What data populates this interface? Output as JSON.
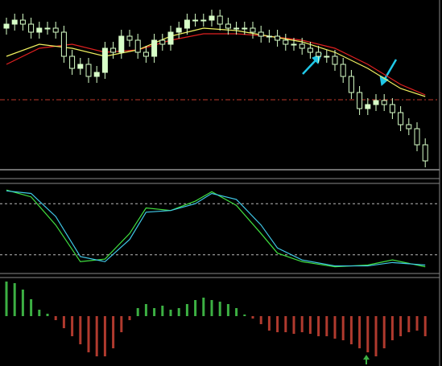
{
  "chart_data": [
    {
      "type": "candlestick",
      "open": [
        175,
        180,
        185,
        180,
        170,
        175,
        175,
        170,
        140,
        125,
        130,
        115,
        120,
        150,
        145,
        165,
        160,
        145,
        140,
        160,
        155,
        170,
        175,
        185,
        185,
        185,
        190,
        180,
        175,
        175,
        175,
        170,
        165,
        165,
        160,
        155,
        155,
        150,
        145,
        140,
        140,
        130,
        115,
        95,
        75,
        80,
        85,
        80,
        70,
        55,
        50,
        30
      ],
      "high": [
        188,
        193,
        193,
        188,
        183,
        183,
        183,
        178,
        148,
        138,
        138,
        128,
        158,
        158,
        173,
        173,
        168,
        153,
        168,
        168,
        178,
        183,
        193,
        193,
        193,
        198,
        198,
        188,
        183,
        183,
        183,
        178,
        173,
        173,
        168,
        163,
        163,
        158,
        153,
        148,
        148,
        138,
        123,
        103,
        88,
        93,
        93,
        88,
        78,
        63,
        58,
        38
      ],
      "low": [
        167,
        172,
        172,
        162,
        162,
        167,
        162,
        132,
        117,
        117,
        107,
        107,
        112,
        137,
        137,
        152,
        137,
        132,
        132,
        147,
        147,
        162,
        167,
        177,
        177,
        177,
        172,
        167,
        167,
        167,
        162,
        157,
        157,
        152,
        147,
        147,
        142,
        137,
        132,
        132,
        122,
        107,
        87,
        67,
        67,
        72,
        72,
        62,
        47,
        42,
        22,
        2
      ],
      "close": [
        180,
        185,
        180,
        170,
        175,
        175,
        170,
        140,
        125,
        130,
        115,
        120,
        150,
        145,
        165,
        160,
        145,
        140,
        160,
        155,
        170,
        175,
        185,
        185,
        185,
        190,
        180,
        175,
        175,
        175,
        170,
        165,
        165,
        160,
        155,
        155,
        150,
        145,
        140,
        140,
        130,
        115,
        95,
        75,
        80,
        85,
        80,
        70,
        55,
        50,
        30,
        10
      ],
      "up_color": "#d8ffc8",
      "down_color": "#000000",
      "wick_color": "#d8ffc8",
      "ylim": [
        0,
        210
      ],
      "reference_line": 86,
      "reference_color": "#c0392b",
      "series": [
        {
          "color": "#e02020",
          "x": [
            0,
            4,
            8,
            12,
            16,
            20,
            24,
            28,
            32,
            36,
            40,
            44,
            48,
            51
          ],
          "values": [
            130,
            150,
            155,
            145,
            148,
            160,
            168,
            168,
            165,
            160,
            150,
            130,
            105,
            92
          ]
        },
        {
          "color": "#f0f060",
          "x": [
            0,
            4,
            8,
            12,
            16,
            20,
            24,
            28,
            32,
            36,
            40,
            44,
            48,
            51
          ],
          "values": [
            140,
            155,
            150,
            140,
            148,
            165,
            175,
            172,
            165,
            158,
            145,
            125,
            100,
            90
          ]
        }
      ]
    },
    {
      "type": "line",
      "ylim": [
        0,
        100
      ],
      "levels": [
        80,
        20
      ],
      "series": [
        {
          "color": "#40e040",
          "x": [
            0,
            3,
            6,
            9,
            12,
            15,
            17,
            20,
            23,
            25,
            28,
            31,
            33,
            36,
            40,
            44,
            47,
            51
          ],
          "values": [
            96,
            88,
            55,
            12,
            15,
            45,
            75,
            72,
            83,
            94,
            78,
            45,
            22,
            12,
            6,
            8,
            14,
            6
          ]
        },
        {
          "color": "#40c8e8",
          "x": [
            0,
            3,
            6,
            9,
            12,
            15,
            17,
            20,
            23,
            25,
            28,
            31,
            33,
            36,
            40,
            44,
            47,
            51
          ],
          "values": [
            95,
            92,
            65,
            18,
            12,
            38,
            70,
            72,
            80,
            92,
            85,
            55,
            28,
            14,
            7,
            7,
            11,
            8
          ]
        }
      ]
    },
    {
      "type": "bar",
      "ylim": [
        -62,
        48
      ],
      "positive_color": "#3cb043",
      "negative_color": "#b03a2e",
      "values": [
        43,
        41,
        33,
        21,
        8,
        3,
        -5,
        -15,
        -25,
        -35,
        -45,
        -50,
        -50,
        -40,
        -20,
        -5,
        10,
        15,
        10,
        13,
        8,
        10,
        15,
        20,
        23,
        20,
        18,
        15,
        10,
        2,
        -3,
        -10,
        -18,
        -20,
        -20,
        -22,
        -20,
        -22,
        -25,
        -25,
        -28,
        -30,
        -35,
        -40,
        -45,
        -50,
        -40,
        -30,
        -25,
        -20,
        -18,
        -25
      ]
    }
  ]
}
